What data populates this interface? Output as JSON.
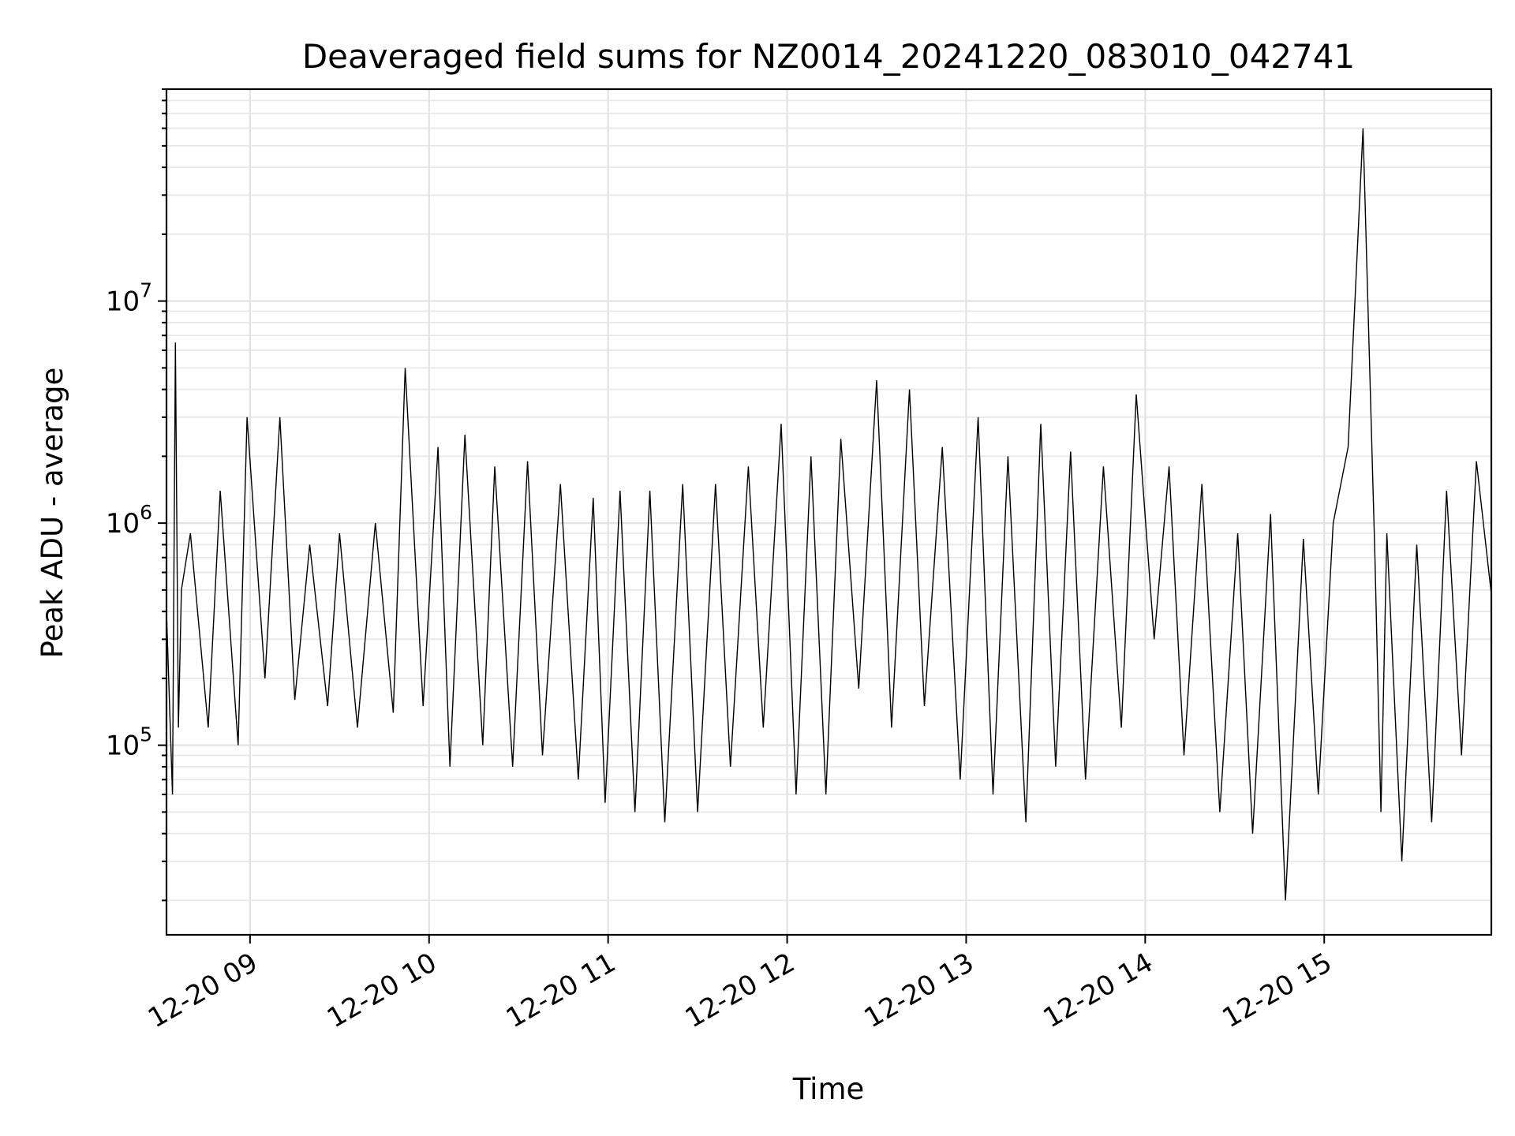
{
  "chart_data": {
    "type": "line",
    "title": "Deaveraged field sums for NZ0014_20241220_083010_042741",
    "xlabel": "Time",
    "ylabel": "Peak ADU - average",
    "yscale": "log",
    "ylim": [
      14000,
      90000000
    ],
    "xlim": [
      "2024-12-20 08:32",
      "2024-12-20 15:56"
    ],
    "grid": "major and minor",
    "line_color": "#000000",
    "x_ticks": [
      {
        "value": "2024-12-20 09:00",
        "label": "12-20 09"
      },
      {
        "value": "2024-12-20 10:00",
        "label": "12-20 10"
      },
      {
        "value": "2024-12-20 11:00",
        "label": "12-20 11"
      },
      {
        "value": "2024-12-20 12:00",
        "label": "12-20 12"
      },
      {
        "value": "2024-12-20 13:00",
        "label": "12-20 13"
      },
      {
        "value": "2024-12-20 14:00",
        "label": "12-20 14"
      },
      {
        "value": "2024-12-20 15:00",
        "label": "12-20 15"
      }
    ],
    "y_ticks": [
      {
        "value": 100000,
        "base": "10",
        "exp": "5"
      },
      {
        "value": 1000000,
        "base": "10",
        "exp": "6"
      },
      {
        "value": 10000000,
        "base": "10",
        "exp": "7"
      }
    ],
    "series": [
      {
        "x": [
          "2024-12-20 08:32",
          "2024-12-20 08:34",
          "2024-12-20 08:35",
          "2024-12-20 08:36",
          "2024-12-20 08:37",
          "2024-12-20 08:40",
          "2024-12-20 08:46",
          "2024-12-20 08:50",
          "2024-12-20 08:56",
          "2024-12-20 08:59",
          "2024-12-20 09:05",
          "2024-12-20 09:10",
          "2024-12-20 09:15",
          "2024-12-20 09:20",
          "2024-12-20 09:26",
          "2024-12-20 09:30",
          "2024-12-20 09:36",
          "2024-12-20 09:42",
          "2024-12-20 09:48",
          "2024-12-20 09:52",
          "2024-12-20 09:58",
          "2024-12-20 10:03",
          "2024-12-20 10:07",
          "2024-12-20 10:12",
          "2024-12-20 10:18",
          "2024-12-20 10:22",
          "2024-12-20 10:28",
          "2024-12-20 10:33",
          "2024-12-20 10:38",
          "2024-12-20 10:44",
          "2024-12-20 10:50",
          "2024-12-20 10:55",
          "2024-12-20 10:59",
          "2024-12-20 11:04",
          "2024-12-20 11:09",
          "2024-12-20 11:14",
          "2024-12-20 11:19",
          "2024-12-20 11:25",
          "2024-12-20 11:30",
          "2024-12-20 11:36",
          "2024-12-20 11:41",
          "2024-12-20 11:47",
          "2024-12-20 11:52",
          "2024-12-20 11:58",
          "2024-12-20 12:03",
          "2024-12-20 12:08",
          "2024-12-20 12:13",
          "2024-12-20 12:18",
          "2024-12-20 12:24",
          "2024-12-20 12:30",
          "2024-12-20 12:35",
          "2024-12-20 12:41",
          "2024-12-20 12:46",
          "2024-12-20 12:52",
          "2024-12-20 12:58",
          "2024-12-20 13:04",
          "2024-12-20 13:09",
          "2024-12-20 13:14",
          "2024-12-20 13:20",
          "2024-12-20 13:25",
          "2024-12-20 13:30",
          "2024-12-20 13:35",
          "2024-12-20 13:40",
          "2024-12-20 13:46",
          "2024-12-20 13:52",
          "2024-12-20 13:57",
          "2024-12-20 14:03",
          "2024-12-20 14:08",
          "2024-12-20 14:13",
          "2024-12-20 14:19",
          "2024-12-20 14:25",
          "2024-12-20 14:31",
          "2024-12-20 14:36",
          "2024-12-20 14:42",
          "2024-12-20 14:47",
          "2024-12-20 14:53",
          "2024-12-20 14:58",
          "2024-12-20 15:03",
          "2024-12-20 15:08",
          "2024-12-20 15:13",
          "2024-12-20 15:17",
          "2024-12-20 15:19",
          "2024-12-20 15:21",
          "2024-12-20 15:26",
          "2024-12-20 15:31",
          "2024-12-20 15:36",
          "2024-12-20 15:41",
          "2024-12-20 15:46",
          "2024-12-20 15:51",
          "2024-12-20 15:56"
        ],
        "y": [
          400000,
          60000,
          6500000,
          120000,
          500000,
          900000,
          120000,
          1400000,
          100000,
          3000000,
          200000,
          3000000,
          160000,
          800000,
          150000,
          900000,
          120000,
          1000000,
          140000,
          5000000,
          150000,
          2200000,
          80000,
          2500000,
          100000,
          1800000,
          80000,
          1900000,
          90000,
          1500000,
          70000,
          1300000,
          55000,
          1400000,
          50000,
          1400000,
          45000,
          1500000,
          50000,
          1500000,
          80000,
          1800000,
          120000,
          2800000,
          60000,
          2000000,
          60000,
          2400000,
          180000,
          4400000,
          120000,
          4000000,
          150000,
          2200000,
          70000,
          3000000,
          60000,
          2000000,
          45000,
          2800000,
          80000,
          2100000,
          70000,
          1800000,
          120000,
          3800000,
          300000,
          1800000,
          90000,
          1500000,
          50000,
          900000,
          40000,
          1100000,
          20000,
          850000,
          60000,
          1000000,
          2200000,
          60000000,
          700000,
          50000,
          900000,
          30000,
          800000,
          45000,
          1400000,
          90000,
          1900000,
          480000
        ]
      }
    ]
  }
}
